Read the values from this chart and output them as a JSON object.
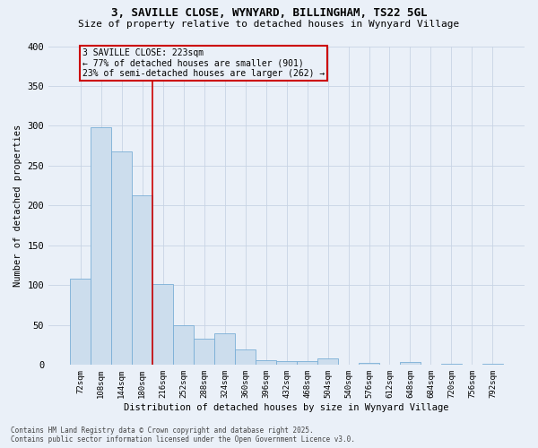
{
  "title1": "3, SAVILLE CLOSE, WYNYARD, BILLINGHAM, TS22 5GL",
  "title2": "Size of property relative to detached houses in Wynyard Village",
  "xlabel": "Distribution of detached houses by size in Wynyard Village",
  "ylabel": "Number of detached properties",
  "footnote": "Contains HM Land Registry data © Crown copyright and database right 2025.\nContains public sector information licensed under the Open Government Licence v3.0.",
  "bar_color": "#ccdded",
  "bar_edge_color": "#7aaed6",
  "annotation_box_color": "#cc0000",
  "vline_color": "#cc0000",
  "grid_color": "#c8d4e4",
  "bg_color": "#eaf0f8",
  "categories": [
    "72sqm",
    "108sqm",
    "144sqm",
    "180sqm",
    "216sqm",
    "252sqm",
    "288sqm",
    "324sqm",
    "360sqm",
    "396sqm",
    "432sqm",
    "468sqm",
    "504sqm",
    "540sqm",
    "576sqm",
    "612sqm",
    "648sqm",
    "684sqm",
    "720sqm",
    "756sqm",
    "792sqm"
  ],
  "values": [
    108,
    298,
    268,
    213,
    102,
    50,
    33,
    40,
    19,
    6,
    5,
    5,
    8,
    0,
    3,
    0,
    4,
    0,
    2,
    0,
    2
  ],
  "property_label": "3 SAVILLE CLOSE: 223sqm",
  "annotation_line1": "← 77% of detached houses are smaller (901)",
  "annotation_line2": "23% of semi-detached houses are larger (262) →",
  "vline_x": 3.5,
  "ylim": [
    0,
    400
  ],
  "yticks": [
    0,
    50,
    100,
    150,
    200,
    250,
    300,
    350,
    400
  ]
}
